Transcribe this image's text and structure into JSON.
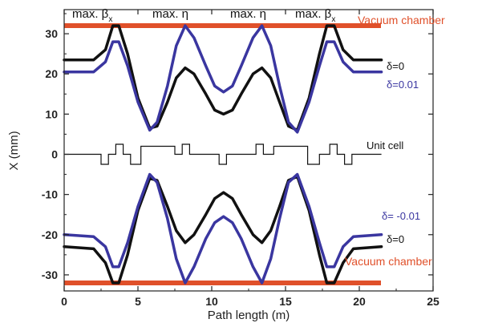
{
  "chart_data": {
    "type": "line",
    "xlabel": "Path length (m)",
    "ylabel": "X (mm)",
    "xlim": [
      0,
      25
    ],
    "ylim": [
      -34,
      36
    ],
    "xticks": [
      "0",
      "5",
      "10",
      "15",
      "20",
      "25"
    ],
    "yticks": [
      "30",
      "20",
      "10",
      "0",
      "-10",
      "-20",
      "-30"
    ],
    "xtick_values": [
      0,
      5,
      10,
      15,
      20,
      25
    ],
    "ytick_values": [
      30,
      20,
      10,
      0,
      -10,
      -20,
      -30
    ],
    "grid": false,
    "series": [
      {
        "name": "δ=0",
        "color": "#111111",
        "x": [
          0,
          2.0,
          2.8,
          3.3,
          3.7,
          4.3,
          5.0,
          5.8,
          6.3,
          7.0,
          7.6,
          8.2,
          8.8,
          9.6,
          10.2,
          10.8,
          11.4,
          12.0,
          12.8,
          13.4,
          14.0,
          14.6,
          15.2,
          15.8,
          16.6,
          17.3,
          17.8,
          18.3,
          18.9,
          19.6,
          21.5
        ],
        "y": [
          23.5,
          23.5,
          26,
          32,
          32,
          25,
          14,
          6.5,
          7,
          13,
          19,
          21.5,
          20,
          15,
          11,
          10,
          11,
          15,
          20,
          21.5,
          19,
          13,
          7,
          6,
          14,
          25,
          32,
          32,
          26,
          23.5,
          23.5
        ]
      },
      {
        "name": "δ=0.01",
        "color": "#3a36a0",
        "x": [
          0,
          2.0,
          2.8,
          3.3,
          3.7,
          4.3,
          5.0,
          5.8,
          6.3,
          7.0,
          7.6,
          8.2,
          8.8,
          9.6,
          10.2,
          10.8,
          11.4,
          12.0,
          12.8,
          13.4,
          14.0,
          14.6,
          15.2,
          15.8,
          16.6,
          17.3,
          17.8,
          18.3,
          18.9,
          19.6,
          21.5
        ],
        "y": [
          20.5,
          20.5,
          23,
          28,
          28,
          22,
          13,
          6,
          8,
          17,
          27,
          32,
          29,
          22,
          17,
          15.5,
          17,
          22,
          29,
          32,
          27,
          17,
          8,
          5.5,
          13,
          22,
          28,
          28,
          23,
          20.5,
          20.5
        ]
      },
      {
        "name": "δ=0",
        "color": "#111111",
        "x": [
          0,
          2.0,
          2.8,
          3.3,
          3.7,
          4.3,
          5.0,
          5.8,
          6.3,
          7.0,
          7.6,
          8.2,
          8.8,
          9.6,
          10.2,
          10.8,
          11.4,
          12.0,
          12.8,
          13.4,
          14.0,
          14.6,
          15.2,
          15.8,
          16.6,
          17.3,
          17.8,
          18.3,
          18.9,
          19.6,
          21.5
        ],
        "y": [
          -23,
          -23.5,
          -27,
          -32,
          -32,
          -25,
          -14,
          -6,
          -6.5,
          -13,
          -19,
          -22,
          -20,
          -15,
          -11,
          -9.5,
          -11,
          -15,
          -20,
          -22,
          -19,
          -13,
          -6.5,
          -5.5,
          -14,
          -25,
          -32,
          -32,
          -27,
          -23.5,
          -23
        ]
      },
      {
        "name": "δ= -0.01",
        "color": "#3a36a0",
        "x": [
          0,
          2.0,
          2.8,
          3.3,
          3.7,
          4.3,
          5.0,
          5.8,
          6.3,
          7.0,
          7.6,
          8.2,
          8.8,
          9.6,
          10.2,
          10.8,
          11.4,
          12.0,
          12.8,
          13.4,
          14.0,
          14.6,
          15.2,
          15.8,
          16.6,
          17.3,
          17.8,
          18.3,
          18.9,
          19.6,
          21.5
        ],
        "y": [
          -20,
          -20.5,
          -23,
          -28,
          -28,
          -22,
          -13,
          -5,
          -7,
          -16,
          -26,
          -32,
          -28,
          -21,
          -17,
          -15.5,
          -17,
          -21,
          -28,
          -32,
          -26,
          -16,
          -7,
          -5,
          -13,
          -22,
          -28,
          -28,
          -23,
          -20.5,
          -20
        ]
      }
    ],
    "vacuum_chamber": {
      "label": "Vacuum chamber",
      "color": "#e0502a",
      "upper": 32,
      "lower": -32
    },
    "unit_cell": {
      "label": "Unit cell",
      "x": [
        0,
        2.5,
        2.5,
        3.0,
        3.0,
        3.5,
        3.5,
        4.0,
        4.0,
        4.5,
        4.5,
        5.2,
        5.2,
        7.5,
        7.5,
        8.0,
        8.0,
        8.5,
        8.5,
        10.5,
        10.5,
        11.0,
        11.0,
        13.0,
        13.0,
        13.5,
        13.5,
        14.2,
        14.2,
        16.5,
        16.5,
        17.3,
        17.3,
        18.0,
        18.0,
        18.5,
        18.5,
        19.0,
        19.0,
        19.5,
        19.5,
        21.5
      ],
      "y": [
        0,
        0,
        -2.5,
        -2.5,
        0,
        0,
        2.5,
        2.5,
        0,
        0,
        -2.5,
        -2.5,
        2,
        2,
        0,
        0,
        2.5,
        2.5,
        0,
        0,
        -2.5,
        -2.5,
        0,
        0,
        2.5,
        2.5,
        0,
        0,
        2,
        2,
        -2.5,
        -2.5,
        0,
        0,
        2.5,
        2.5,
        0,
        0,
        -2.5,
        -2.5,
        0,
        0
      ]
    },
    "annotations": {
      "max_beta_left": "max. β",
      "max_beta_sub": "x",
      "max_eta_1": "max. η",
      "max_eta_2": "max. η",
      "max_beta_right": "max. β"
    },
    "legend": {
      "upper_delta0": "δ=0",
      "upper_delta001": "δ=0.01",
      "lower_deltam001": "δ= -0.01",
      "lower_delta0": "δ=0",
      "placement": "right"
    }
  }
}
